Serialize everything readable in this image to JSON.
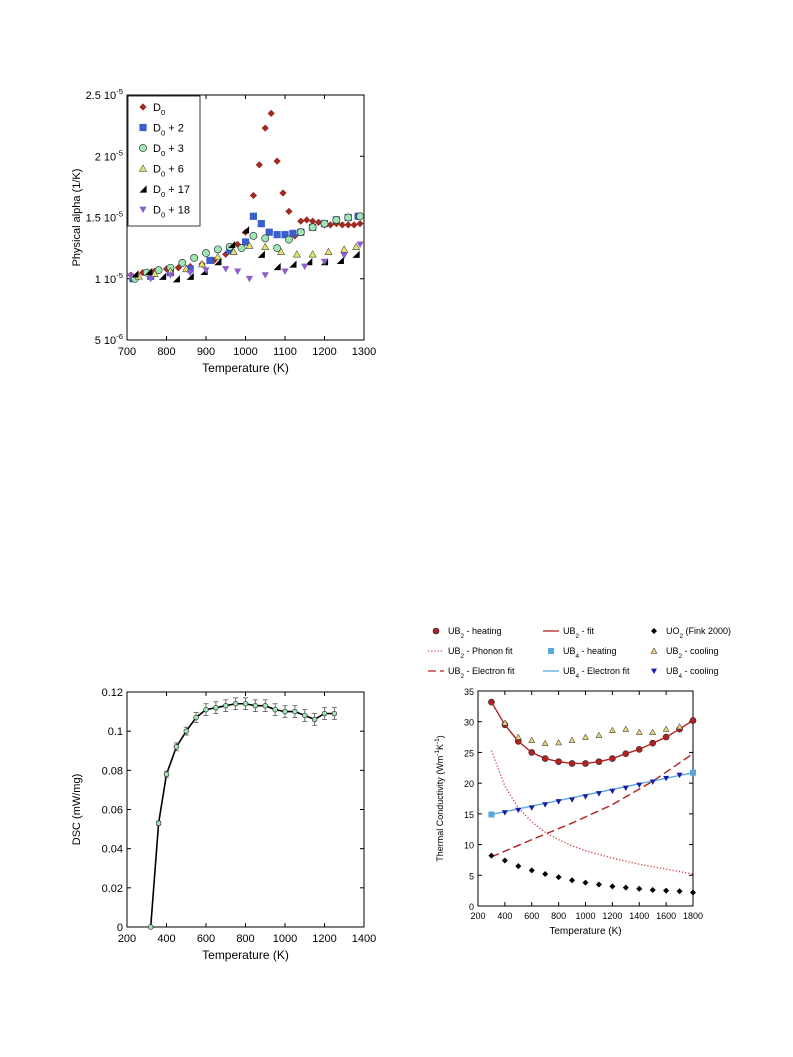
{
  "charts": [
    {
      "id": "alpha",
      "type": "scatter",
      "title": "",
      "xlabel": "Temperature (K)",
      "ylabel": "Physical alpha (1/K)",
      "xlim": [
        700,
        1300
      ],
      "ylim": [
        5e-06,
        2.5e-05
      ],
      "xticks": [
        700,
        800,
        900,
        1000,
        1100,
        1200,
        1300
      ],
      "xtick_labels": [
        "700",
        "800",
        "900",
        "1000",
        "1100",
        "1200",
        "1300"
      ],
      "yticks": [
        5e-06,
        1e-05,
        1.5e-05,
        2e-05,
        2.5e-05
      ],
      "ytick_labels": [
        {
          "base": "5 10",
          "exp": "-6"
        },
        {
          "base": "1 10",
          "exp": "-5"
        },
        {
          "base": "1.5 10",
          "exp": "-5"
        },
        {
          "base": "2 10",
          "exp": "-5"
        },
        {
          "base": "2.5 10",
          "exp": "-5"
        }
      ],
      "grid": false,
      "legend_position": "top-left",
      "series": [
        {
          "name": "D",
          "sub": "0",
          "suffix": "",
          "marker": "diamond",
          "color": "#9e2a22",
          "x": [
            710,
            740,
            770,
            800,
            830,
            860,
            890,
            920,
            950,
            980,
            1000,
            1020,
            1035,
            1050,
            1065,
            1080,
            1095,
            1110,
            1125,
            1140,
            1155,
            1170,
            1185,
            1200,
            1215,
            1230,
            1245,
            1260,
            1275,
            1290
          ],
          "y": [
            1.03e-05,
            1.05e-05,
            1.06e-05,
            1.08e-05,
            1.09e-05,
            1.1e-05,
            1.12e-05,
            1.15e-05,
            1.2e-05,
            1.28e-05,
            1.38e-05,
            1.68e-05,
            1.93e-05,
            2.23e-05,
            2.35e-05,
            1.96e-05,
            1.7e-05,
            1.55e-05,
            1.35e-05,
            1.47e-05,
            1.48e-05,
            1.47e-05,
            1.46e-05,
            1.44e-05,
            1.44e-05,
            1.45e-05,
            1.44e-05,
            1.44e-05,
            1.44e-05,
            1.45e-05
          ]
        },
        {
          "name": "D",
          "sub": "0",
          "suffix": " + 2",
          "marker": "square",
          "color": "#3a5fcd",
          "x": [
            715,
            760,
            810,
            860,
            910,
            960,
            1000,
            1020,
            1040,
            1060,
            1080,
            1100,
            1120,
            1140,
            1170,
            1200,
            1230,
            1260,
            1285
          ],
          "y": [
            1e-05,
            1.02e-05,
            1.05e-05,
            1.08e-05,
            1.15e-05,
            1.23e-05,
            1.3e-05,
            1.51e-05,
            1.45e-05,
            1.38e-05,
            1.36e-05,
            1.36e-05,
            1.37e-05,
            1.38e-05,
            1.42e-05,
            1.45e-05,
            1.48e-05,
            1.5e-05,
            1.51e-05
          ]
        },
        {
          "name": "D",
          "sub": "0",
          "suffix": " + 3",
          "marker": "circle",
          "color": "#9ee6b4",
          "x": [
            720,
            750,
            780,
            810,
            840,
            870,
            900,
            930,
            960,
            990,
            1020,
            1050,
            1080,
            1110,
            1140,
            1170,
            1200,
            1230,
            1260,
            1290
          ],
          "y": [
            1e-05,
            1.05e-05,
            1.07e-05,
            1.09e-05,
            1.13e-05,
            1.17e-05,
            1.21e-05,
            1.24e-05,
            1.26e-05,
            1.25e-05,
            1.35e-05,
            1.33e-05,
            1.25e-05,
            1.32e-05,
            1.38e-05,
            1.42e-05,
            1.45e-05,
            1.48e-05,
            1.5e-05,
            1.51e-05
          ]
        },
        {
          "name": "D",
          "sub": "0",
          "suffix": " + 6",
          "marker": "triangle-up",
          "color": "#e2e070",
          "x": [
            730,
            770,
            810,
            850,
            890,
            930,
            970,
            1010,
            1050,
            1090,
            1130,
            1170,
            1210,
            1250,
            1280
          ],
          "y": [
            1.02e-05,
            1.04e-05,
            1.06e-05,
            1.08e-05,
            1.12e-05,
            1.18e-05,
            1.22e-05,
            1.27e-05,
            1.26e-05,
            1.22e-05,
            1.2e-05,
            1.2e-05,
            1.22e-05,
            1.24e-05,
            1.26e-05
          ]
        },
        {
          "name": "D",
          "sub": "0",
          "suffix": " + 17",
          "marker": "halftriangle",
          "color": "#000000",
          "x": [
            720,
            755,
            790,
            825,
            860,
            895,
            930,
            965,
            1000,
            1040,
            1080,
            1120,
            1160,
            1200,
            1240,
            1280
          ],
          "y": [
            1.04e-05,
            1.06e-05,
            1.02e-05,
            1e-05,
            1.02e-05,
            1.06e-05,
            1.14e-05,
            1.28e-05,
            1.4e-05,
            1.2e-05,
            1.1e-05,
            1.12e-05,
            1.14e-05,
            1.14e-05,
            1.15e-05,
            1.2e-05
          ]
        },
        {
          "name": "D",
          "sub": "0",
          "suffix": " + 18",
          "marker": "triangle-down",
          "color": "#8e5ec9",
          "x": [
            710,
            760,
            810,
            860,
            900,
            950,
            980,
            1010,
            1050,
            1100,
            1150,
            1200,
            1250,
            1290
          ],
          "y": [
            1.02e-05,
            1e-05,
            1.03e-05,
            1.05e-05,
            1.07e-05,
            1.08e-05,
            1.06e-05,
            1e-05,
            1.03e-05,
            1.06e-05,
            1.1e-05,
            1.14e-05,
            1.19e-05,
            1.28e-05
          ]
        }
      ]
    },
    {
      "id": "dsc",
      "type": "line",
      "title": "",
      "xlabel": "Temperature (K)",
      "ylabel": "DSC (mW/mg)",
      "xlim": [
        200,
        1400
      ],
      "ylim": [
        0,
        0.12
      ],
      "xticks": [
        200,
        400,
        600,
        800,
        1000,
        1200,
        1400
      ],
      "xtick_labels": [
        "200",
        "400",
        "600",
        "800",
        "1000",
        "1200",
        "1400"
      ],
      "yticks": [
        0,
        0.02,
        0.04,
        0.06,
        0.08,
        0.1,
        0.12
      ],
      "ytick_labels": [
        "0",
        "0.02",
        "0.04",
        "0.06",
        "0.08",
        "0.1",
        "0.12"
      ],
      "grid": false,
      "series": [
        {
          "marker": "circle",
          "color": "#9ee6b4",
          "line_color": "#000000",
          "x": [
            320,
            360,
            400,
            450,
            500,
            550,
            600,
            650,
            700,
            750,
            800,
            850,
            900,
            950,
            1000,
            1050,
            1100,
            1150,
            1200,
            1250
          ],
          "y": [
            0.0,
            0.053,
            0.078,
            0.092,
            0.1,
            0.107,
            0.111,
            0.112,
            0.113,
            0.114,
            0.114,
            0.113,
            0.113,
            0.111,
            0.11,
            0.11,
            0.108,
            0.106,
            0.109,
            0.109
          ],
          "err": [
            0.0005,
            0.001,
            0.0015,
            0.002,
            0.002,
            0.0025,
            0.003,
            0.003,
            0.003,
            0.003,
            0.003,
            0.003,
            0.003,
            0.003,
            0.003,
            0.003,
            0.003,
            0.003,
            0.003,
            0.003
          ]
        }
      ]
    },
    {
      "id": "tc",
      "type": "scatter",
      "title": "",
      "xlabel": "Temperature (K)",
      "ylabel": "Thermal Conductivity (Wm",
      "ylabel_exp": "-1",
      "ylabel_unit": "K",
      "ylabel_tail": ")",
      "xlim": [
        200,
        1800
      ],
      "ylim": [
        0,
        35
      ],
      "xticks": [
        200,
        400,
        600,
        800,
        1000,
        1200,
        1400,
        1600,
        1800
      ],
      "xtick_labels": [
        "200",
        "400",
        "600",
        "800",
        "1000",
        "1200",
        "1400",
        "1600",
        "1800"
      ],
      "yticks": [
        0,
        5,
        10,
        15,
        20,
        25,
        30,
        35
      ],
      "ytick_labels": [
        "0",
        "5",
        "10",
        "15",
        "20",
        "25",
        "30",
        "35"
      ],
      "grid": false,
      "legend_position": "top",
      "legend": [
        {
          "text": "UB",
          "sub": "2",
          "suffix": " - heating",
          "kind": "marker",
          "marker": "circle",
          "color": "#b22222"
        },
        {
          "text": "UB",
          "sub": "2",
          "suffix": " - fit",
          "kind": "line",
          "dash": "none",
          "color": "#b22222"
        },
        {
          "text": "UO",
          "sub": "2",
          "suffix": " (Fink 2000)",
          "kind": "marker",
          "marker": "diamond",
          "color": "#000000"
        },
        {
          "text": "UB",
          "sub": "2",
          "suffix": " - Phonon fit",
          "kind": "line",
          "dash": "dot",
          "color": "#d0434b"
        },
        {
          "text": "UB",
          "sub": "4",
          "suffix": " - heating",
          "kind": "marker",
          "marker": "square",
          "color": "#58a9e0"
        },
        {
          "text": "UB",
          "sub": "2",
          "suffix": " - cooling",
          "kind": "marker",
          "marker": "triangle-up",
          "color": "#e6d27a"
        },
        {
          "text": "UB",
          "sub": "2",
          "suffix": " - Electron fit",
          "kind": "line",
          "dash": "dash",
          "color": "#b22222"
        },
        {
          "text": "UB",
          "sub": "4",
          "suffix": " - Electron fit",
          "kind": "line",
          "dash": "none",
          "color": "#58a9e0"
        },
        {
          "text": "UB",
          "sub": "4",
          "suffix": " - cooling",
          "kind": "marker",
          "marker": "triangle-down",
          "color": "#1a1aa8"
        }
      ],
      "series": [
        {
          "name": "UB2 - heating",
          "marker": "circle",
          "color": "#b22222",
          "x": [
            300,
            400,
            500,
            600,
            700,
            800,
            900,
            1000,
            1100,
            1200,
            1300,
            1400,
            1500,
            1600,
            1700,
            1800
          ],
          "y": [
            33.2,
            29.5,
            26.8,
            25.0,
            24.0,
            23.5,
            23.2,
            23.2,
            23.5,
            24.0,
            24.8,
            25.5,
            26.5,
            27.5,
            28.8,
            30.2
          ]
        },
        {
          "name": "UB2 - fit",
          "kind": "line",
          "dash": "none",
          "color": "#b22222",
          "x": [
            300,
            400,
            500,
            600,
            700,
            800,
            900,
            1000,
            1100,
            1200,
            1300,
            1400,
            1500,
            1600,
            1700,
            1800
          ],
          "y": [
            33.2,
            29.5,
            26.8,
            25.0,
            24.0,
            23.5,
            23.2,
            23.2,
            23.5,
            24.0,
            24.8,
            25.5,
            26.5,
            27.5,
            28.8,
            30.2
          ]
        },
        {
          "name": "UB2 - Phonon fit",
          "kind": "line",
          "dash": "dot",
          "color": "#d0434b",
          "x": [
            300,
            400,
            500,
            600,
            700,
            800,
            900,
            1000,
            1100,
            1200,
            1300,
            1400,
            1500,
            1600,
            1700,
            1800
          ],
          "y": [
            25.3,
            19.5,
            16.0,
            13.7,
            12.0,
            10.8,
            9.8,
            9.0,
            8.4,
            7.8,
            7.3,
            6.8,
            6.4,
            6.0,
            5.6,
            5.2
          ]
        },
        {
          "name": "UB2 - Electron fit",
          "kind": "line",
          "dash": "dash",
          "color": "#b22222",
          "x": [
            300,
            600,
            900,
            1200,
            1500,
            1800
          ],
          "y": [
            8.0,
            10.8,
            13.5,
            16.5,
            20.3,
            24.8
          ]
        },
        {
          "name": "UB4 - Electron fit",
          "kind": "line",
          "dash": "none",
          "color": "#58a9e0",
          "x": [
            300,
            1800
          ],
          "y": [
            14.9,
            21.7
          ]
        },
        {
          "name": "UB4 - heating",
          "marker": "square",
          "color": "#58a9e0",
          "x": [
            300,
            1800
          ],
          "y": [
            14.9,
            21.7
          ]
        },
        {
          "name": "UB4 - cooling",
          "marker": "triangle-down",
          "color": "#1a1aa8",
          "x": [
            400,
            500,
            600,
            700,
            800,
            900,
            1000,
            1100,
            1200,
            1300,
            1400,
            1500,
            1600,
            1700
          ],
          "y": [
            15.2,
            15.6,
            16.0,
            16.5,
            17.0,
            17.3,
            17.8,
            18.3,
            18.7,
            19.2,
            19.7,
            20.2,
            20.8,
            21.3
          ]
        },
        {
          "name": "UB2 - cooling",
          "marker": "triangle-up",
          "color": "#e6d27a",
          "x": [
            400,
            500,
            600,
            700,
            800,
            900,
            1000,
            1100,
            1200,
            1300,
            1400,
            1500,
            1600,
            1700
          ],
          "y": [
            29.8,
            27.5,
            27.0,
            26.5,
            26.6,
            27.0,
            27.5,
            27.8,
            28.6,
            28.8,
            28.3,
            28.3,
            28.8,
            29.2
          ]
        },
        {
          "name": "UO2 (Fink 2000)",
          "marker": "diamond",
          "color": "#000000",
          "x": [
            300,
            400,
            500,
            600,
            700,
            800,
            900,
            1000,
            1100,
            1200,
            1300,
            1400,
            1500,
            1600,
            1700,
            1800
          ],
          "y": [
            8.2,
            7.4,
            6.5,
            5.8,
            5.2,
            4.7,
            4.2,
            3.8,
            3.5,
            3.2,
            3.0,
            2.8,
            2.6,
            2.5,
            2.4,
            2.2
          ]
        }
      ]
    }
  ]
}
